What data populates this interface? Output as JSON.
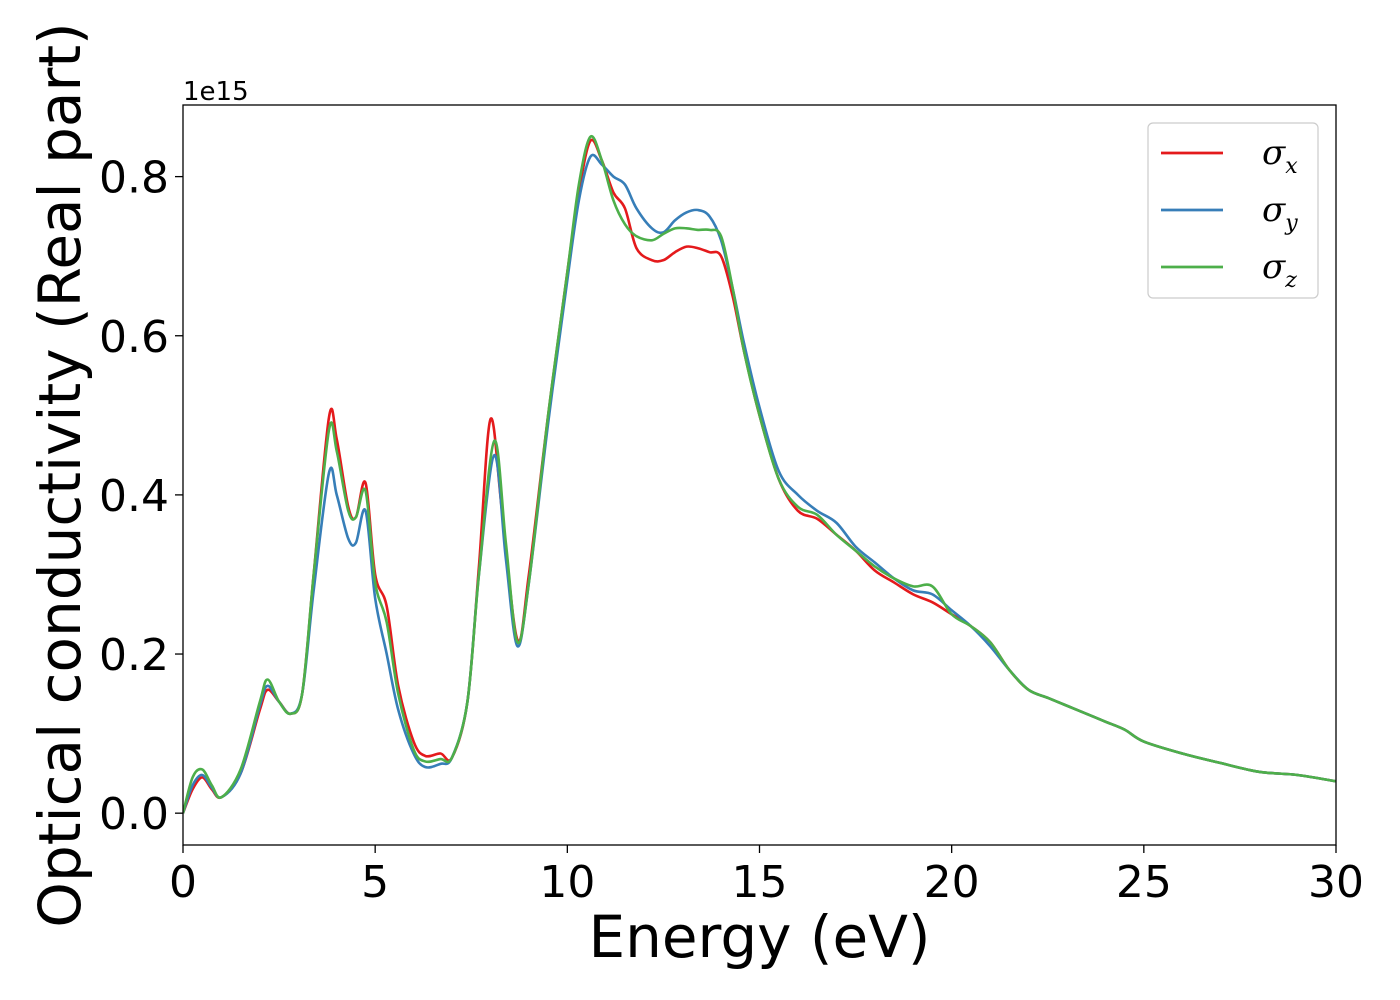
{
  "chart_data": {
    "type": "line",
    "xlabel": "Energy (eV)",
    "ylabel": "Optical conductivity (Real part)",
    "y_offset_label": "1e15",
    "xlim": [
      0,
      30
    ],
    "ylim": [
      -0.04,
      0.89
    ],
    "xticks": [
      0,
      5,
      10,
      15,
      20,
      25,
      30
    ],
    "xtick_labels": [
      "0",
      "5",
      "10",
      "15",
      "20",
      "25",
      "30"
    ],
    "yticks": [
      0.0,
      0.2,
      0.4,
      0.6,
      0.8
    ],
    "ytick_labels": [
      "0.0",
      "0.2",
      "0.4",
      "0.6",
      "0.8"
    ],
    "grid": false,
    "legend_position": "top-right",
    "series": [
      {
        "name": "σx",
        "label_base": "σ",
        "label_sub": "x",
        "color": "#e41a1c",
        "x": [
          0,
          0.25,
          0.5,
          0.75,
          1.0,
          1.5,
          2.0,
          2.2,
          2.5,
          2.8,
          3.1,
          3.4,
          3.8,
          4.0,
          4.3,
          4.5,
          4.75,
          5.0,
          5.3,
          5.6,
          6.0,
          6.3,
          6.7,
          7.0,
          7.4,
          7.7,
          8.0,
          8.3,
          8.7,
          9.0,
          9.5,
          10.0,
          10.3,
          10.6,
          10.9,
          11.2,
          11.5,
          11.8,
          12.2,
          12.5,
          12.8,
          13.1,
          13.4,
          13.7,
          14.0,
          14.3,
          14.6,
          15.0,
          15.5,
          16.0,
          16.5,
          17.0,
          17.5,
          18.0,
          18.5,
          19.0,
          19.5,
          20.0,
          20.5,
          21.0,
          21.5,
          22.0,
          22.5,
          23.0,
          23.5,
          24.0,
          24.5,
          25.0,
          26.0,
          27.0,
          28.0,
          29.0,
          30.0
        ],
        "y": [
          0.0,
          0.03,
          0.045,
          0.03,
          0.02,
          0.05,
          0.13,
          0.155,
          0.14,
          0.125,
          0.15,
          0.3,
          0.498,
          0.47,
          0.385,
          0.372,
          0.415,
          0.3,
          0.26,
          0.16,
          0.09,
          0.072,
          0.075,
          0.07,
          0.14,
          0.31,
          0.495,
          0.38,
          0.218,
          0.3,
          0.5,
          0.68,
          0.78,
          0.845,
          0.82,
          0.78,
          0.76,
          0.71,
          0.695,
          0.695,
          0.705,
          0.712,
          0.71,
          0.705,
          0.7,
          0.65,
          0.58,
          0.5,
          0.42,
          0.38,
          0.37,
          0.35,
          0.33,
          0.305,
          0.29,
          0.275,
          0.265,
          0.25,
          0.235,
          0.215,
          0.18,
          0.155,
          0.145,
          0.135,
          0.125,
          0.115,
          0.105,
          0.09,
          0.075,
          0.063,
          0.052,
          0.048,
          0.04
        ]
      },
      {
        "name": "σy",
        "label_base": "σ",
        "label_sub": "y",
        "color": "#377eb8",
        "x": [
          0,
          0.25,
          0.5,
          0.75,
          1.0,
          1.5,
          2.0,
          2.2,
          2.5,
          2.8,
          3.1,
          3.4,
          3.8,
          4.0,
          4.3,
          4.5,
          4.75,
          5.0,
          5.3,
          5.6,
          6.0,
          6.3,
          6.7,
          7.0,
          7.4,
          7.7,
          8.1,
          8.4,
          8.7,
          9.0,
          9.5,
          10.0,
          10.3,
          10.6,
          10.9,
          11.2,
          11.5,
          11.8,
          12.2,
          12.5,
          12.8,
          13.1,
          13.4,
          13.7,
          14.0,
          14.3,
          14.6,
          15.0,
          15.5,
          16.0,
          16.5,
          17.0,
          17.5,
          18.0,
          18.5,
          19.0,
          19.5,
          20.0,
          20.5,
          21.0,
          21.5,
          22.0,
          22.5,
          23.0,
          23.5,
          24.0,
          24.5,
          25.0,
          26.0,
          27.0,
          28.0,
          29.0,
          30.0
        ],
        "y": [
          0.0,
          0.035,
          0.048,
          0.032,
          0.02,
          0.05,
          0.135,
          0.16,
          0.14,
          0.125,
          0.15,
          0.28,
          0.428,
          0.4,
          0.345,
          0.34,
          0.38,
          0.27,
          0.2,
          0.13,
          0.075,
          0.058,
          0.062,
          0.07,
          0.14,
          0.3,
          0.45,
          0.32,
          0.21,
          0.29,
          0.49,
          0.67,
          0.77,
          0.825,
          0.815,
          0.8,
          0.79,
          0.76,
          0.735,
          0.73,
          0.745,
          0.755,
          0.758,
          0.75,
          0.72,
          0.66,
          0.59,
          0.51,
          0.43,
          0.4,
          0.38,
          0.365,
          0.335,
          0.315,
          0.295,
          0.28,
          0.275,
          0.255,
          0.235,
          0.21,
          0.18,
          0.155,
          0.145,
          0.135,
          0.125,
          0.115,
          0.105,
          0.09,
          0.075,
          0.063,
          0.052,
          0.048,
          0.04
        ]
      },
      {
        "name": "σz",
        "label_base": "σ",
        "label_sub": "z",
        "color": "#4daf4a",
        "x": [
          0,
          0.25,
          0.5,
          0.75,
          1.0,
          1.5,
          2.0,
          2.2,
          2.5,
          2.8,
          3.1,
          3.4,
          3.8,
          4.0,
          4.3,
          4.5,
          4.75,
          5.0,
          5.3,
          5.6,
          6.0,
          6.3,
          6.7,
          7.0,
          7.4,
          7.7,
          8.1,
          8.4,
          8.7,
          9.0,
          9.5,
          10.0,
          10.3,
          10.6,
          10.9,
          11.2,
          11.5,
          11.8,
          12.2,
          12.5,
          12.8,
          13.1,
          13.4,
          13.7,
          14.0,
          14.3,
          14.6,
          15.0,
          15.5,
          16.0,
          16.5,
          17.0,
          17.5,
          18.0,
          18.5,
          19.0,
          19.5,
          20.0,
          20.5,
          21.0,
          21.5,
          22.0,
          22.5,
          23.0,
          23.5,
          24.0,
          24.5,
          25.0,
          26.0,
          27.0,
          28.0,
          29.0,
          30.0
        ],
        "y": [
          0.0,
          0.045,
          0.055,
          0.035,
          0.02,
          0.055,
          0.14,
          0.168,
          0.14,
          0.125,
          0.15,
          0.3,
          0.482,
          0.455,
          0.38,
          0.372,
          0.405,
          0.29,
          0.24,
          0.15,
          0.08,
          0.065,
          0.068,
          0.07,
          0.14,
          0.3,
          0.468,
          0.34,
          0.215,
          0.29,
          0.5,
          0.68,
          0.79,
          0.85,
          0.82,
          0.77,
          0.74,
          0.725,
          0.72,
          0.728,
          0.735,
          0.735,
          0.733,
          0.733,
          0.725,
          0.66,
          0.58,
          0.5,
          0.42,
          0.385,
          0.375,
          0.35,
          0.33,
          0.31,
          0.295,
          0.285,
          0.285,
          0.25,
          0.235,
          0.215,
          0.18,
          0.155,
          0.145,
          0.135,
          0.125,
          0.115,
          0.105,
          0.09,
          0.075,
          0.063,
          0.052,
          0.048,
          0.04
        ]
      }
    ]
  }
}
